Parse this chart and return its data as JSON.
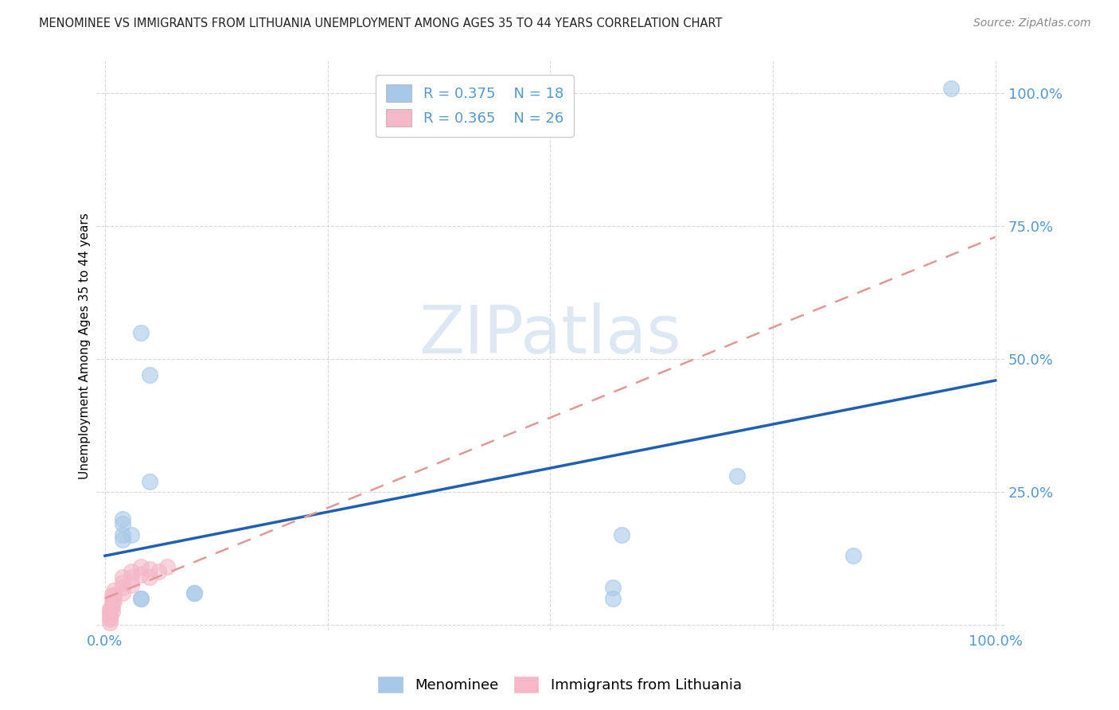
{
  "title": "MENOMINEE VS IMMIGRANTS FROM LITHUANIA UNEMPLOYMENT AMONG AGES 35 TO 44 YEARS CORRELATION CHART",
  "source": "Source: ZipAtlas.com",
  "ylabel": "Unemployment Among Ages 35 to 44 years",
  "legend_label1": "Menominee",
  "legend_label2": "Immigrants from Lithuania",
  "R1": 0.375,
  "N1": 18,
  "R2": 0.365,
  "N2": 26,
  "blue_x": [
    0.02,
    0.02,
    0.02,
    0.02,
    0.03,
    0.04,
    0.05,
    0.05,
    0.57,
    0.57,
    0.71,
    0.84,
    0.95,
    0.58,
    0.04,
    0.04,
    0.1,
    0.1
  ],
  "blue_y": [
    0.19,
    0.2,
    0.17,
    0.16,
    0.17,
    0.55,
    0.47,
    0.27,
    0.07,
    0.05,
    0.28,
    0.13,
    1.01,
    0.17,
    0.05,
    0.05,
    0.06,
    0.06
  ],
  "pink_x": [
    0.005,
    0.005,
    0.005,
    0.005,
    0.005,
    0.005,
    0.008,
    0.008,
    0.008,
    0.008,
    0.01,
    0.01,
    0.01,
    0.02,
    0.02,
    0.02,
    0.02,
    0.03,
    0.03,
    0.03,
    0.04,
    0.04,
    0.05,
    0.05,
    0.06,
    0.07
  ],
  "pink_y": [
    0.03,
    0.025,
    0.02,
    0.015,
    0.01,
    0.005,
    0.055,
    0.045,
    0.035,
    0.025,
    0.065,
    0.055,
    0.045,
    0.09,
    0.08,
    0.07,
    0.06,
    0.1,
    0.09,
    0.075,
    0.11,
    0.095,
    0.105,
    0.09,
    0.1,
    0.11
  ],
  "blue_line_x": [
    0.0,
    1.0
  ],
  "blue_line_y": [
    0.13,
    0.46
  ],
  "pink_line_x": [
    0.0,
    1.0
  ],
  "pink_line_y": [
    0.05,
    0.73
  ],
  "xlim": [
    -0.01,
    1.01
  ],
  "ylim": [
    -0.01,
    1.06
  ],
  "xticks": [
    0.0,
    0.25,
    0.5,
    0.75,
    1.0
  ],
  "xtick_labels": [
    "0.0%",
    "",
    "",
    "",
    "100.0%"
  ],
  "yticks": [
    0.0,
    0.25,
    0.5,
    0.75,
    1.0
  ],
  "ytick_labels": [
    "",
    "25.0%",
    "50.0%",
    "75.0%",
    "100.0%"
  ],
  "background_color": "#ffffff",
  "blue_color": "#a8c8e8",
  "pink_color": "#f4b8c8",
  "blue_line_color": "#2060b0",
  "pink_line_color": "#e09898",
  "grid_color": "#d8d8d8",
  "title_color": "#222222",
  "axis_color": "#5599cc",
  "watermark_color": "#d0dff0",
  "watermark": "ZIPatlas"
}
